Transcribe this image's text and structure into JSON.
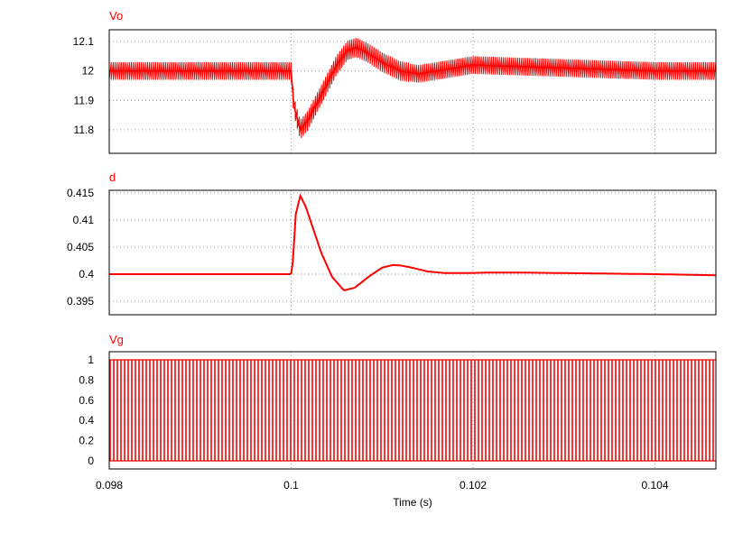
{
  "chart_data": [
    {
      "type": "line",
      "title": "Vo",
      "color": "#ff0000",
      "ylim": [
        11.72,
        12.14
      ],
      "yticks": [
        12.1,
        12,
        11.9,
        11.8
      ],
      "ytick_labels": [
        "12.1",
        "12",
        "11.9",
        "11.8"
      ],
      "grid": true,
      "steady_center": 12.0,
      "ripple_band": [
        11.97,
        12.03
      ],
      "transient_min": 11.75,
      "transient_max": 12.11,
      "series": [
        {
          "x": [
            0.098,
            0.1,
            0.10003,
            0.1001,
            0.10018,
            0.10035,
            0.1005,
            0.10062,
            0.10072,
            0.10085,
            0.101,
            0.1012,
            0.1014,
            0.1016,
            0.1018,
            0.102,
            0.104,
            0.10467
          ],
          "y": [
            12.0,
            12.0,
            11.88,
            11.8,
            11.83,
            11.93,
            12.02,
            12.07,
            12.08,
            12.06,
            12.03,
            12.0,
            11.99,
            12.0,
            12.01,
            12.02,
            12.0,
            12.0
          ]
        }
      ]
    },
    {
      "type": "line",
      "title": "d",
      "color": "#ff0000",
      "ylim": [
        0.3925,
        0.4155
      ],
      "yticks": [
        0.415,
        0.41,
        0.405,
        0.4,
        0.395
      ],
      "ytick_labels": [
        "0.415",
        "0.41",
        "0.405",
        "0.4",
        "0.395"
      ],
      "grid": true,
      "series": [
        {
          "x": [
            0.098,
            0.1,
            0.10002,
            0.10005,
            0.1001,
            0.10016,
            0.10024,
            0.10033,
            0.10045,
            0.10058,
            0.1007,
            0.10085,
            0.101,
            0.10112,
            0.1012,
            0.1013,
            0.1015,
            0.1017,
            0.1019,
            0.1022,
            0.1025,
            0.103,
            0.104,
            0.10467
          ],
          "y": [
            0.4,
            0.4,
            0.4025,
            0.411,
            0.4145,
            0.4125,
            0.4085,
            0.404,
            0.3995,
            0.397,
            0.3975,
            0.3995,
            0.4012,
            0.4017,
            0.4016,
            0.4013,
            0.4005,
            0.4002,
            0.4002,
            0.4003,
            0.4003,
            0.4002,
            0.4,
            0.3998
          ]
        }
      ]
    },
    {
      "type": "line",
      "title": "Vg",
      "color": "#ff0000",
      "ylim": [
        -0.08,
        1.08
      ],
      "yticks": [
        1,
        0.8,
        0.6,
        0.4,
        0.2,
        0
      ],
      "ytick_labels": [
        "1",
        "0.8",
        "0.6",
        "0.4",
        "0.2",
        "0"
      ],
      "grid": true,
      "signal": "PWM square wave, 0 to 1",
      "low_level": 0,
      "high_level": 1
    }
  ],
  "x_axis": {
    "xlim": [
      0.098,
      0.10467
    ],
    "ticks": [
      0.098,
      0.1,
      0.102,
      0.104
    ],
    "tick_labels": [
      "0.098",
      "0.1",
      "0.102",
      "0.104"
    ],
    "label": "Time (s)"
  }
}
